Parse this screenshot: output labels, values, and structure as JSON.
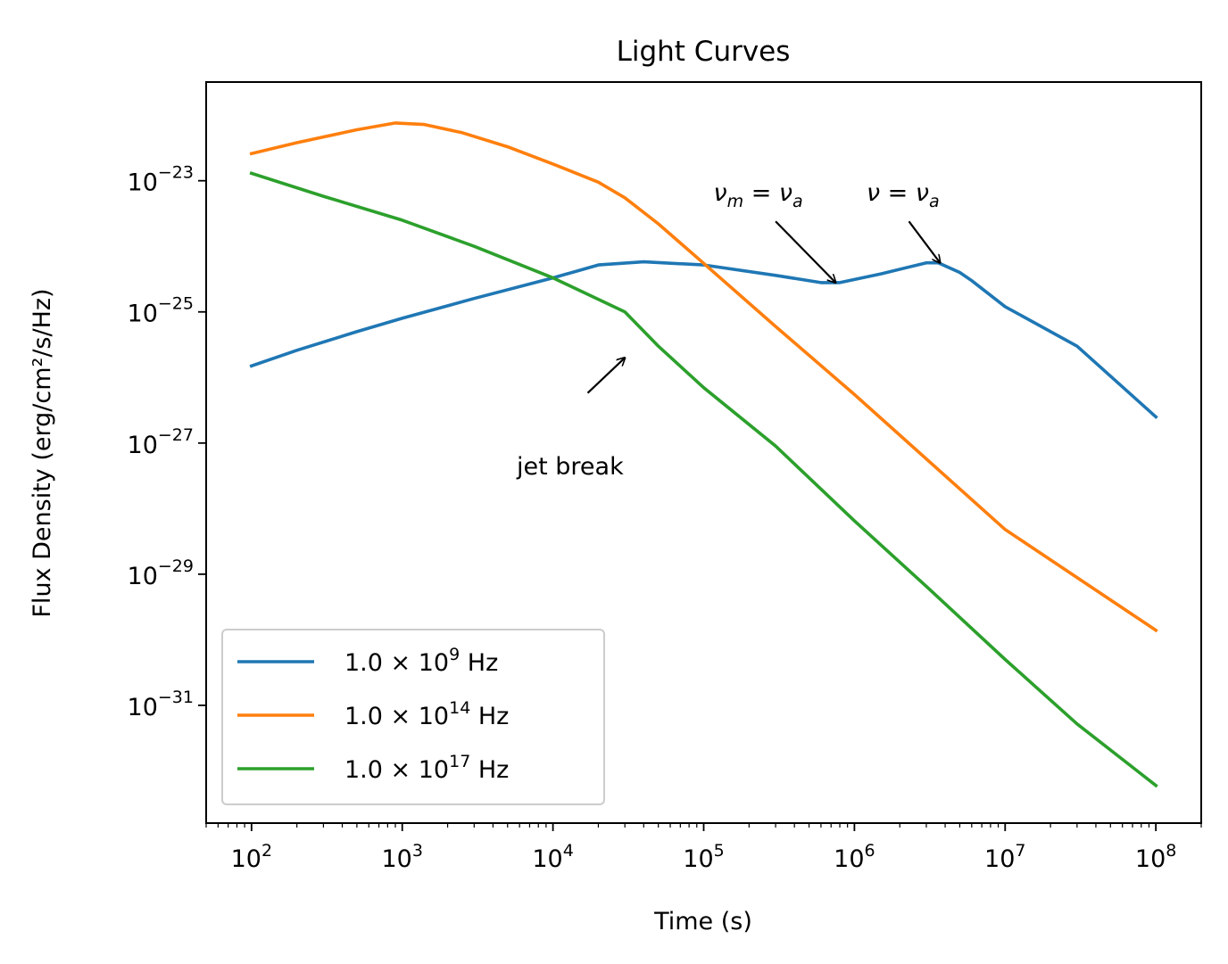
{
  "chart_data": {
    "type": "line",
    "title": "Light Curves",
    "xlabel": "Time (s)",
    "ylabel": "Flux Density (erg/cm²/s/Hz)",
    "x_scale": "log",
    "y_scale": "log",
    "xlim": [
      50,
      200000000.0
    ],
    "ylim": [
      1.6e-33,
      3.2e-22
    ],
    "x_ticks": [
      {
        "value": 100.0,
        "base": "10",
        "exp": "2"
      },
      {
        "value": 1000.0,
        "base": "10",
        "exp": "3"
      },
      {
        "value": 10000.0,
        "base": "10",
        "exp": "4"
      },
      {
        "value": 100000.0,
        "base": "10",
        "exp": "5"
      },
      {
        "value": 1000000.0,
        "base": "10",
        "exp": "6"
      },
      {
        "value": 10000000.0,
        "base": "10",
        "exp": "7"
      },
      {
        "value": 100000000.0,
        "base": "10",
        "exp": "8"
      }
    ],
    "y_ticks": [
      {
        "value": 1e-23,
        "base": "10",
        "exp": "−23"
      },
      {
        "value": 1e-25,
        "base": "10",
        "exp": "−25"
      },
      {
        "value": 1e-27,
        "base": "10",
        "exp": "−27"
      },
      {
        "value": 1e-29,
        "base": "10",
        "exp": "−29"
      },
      {
        "value": 1e-31,
        "base": "10",
        "exp": "−31"
      }
    ],
    "legend_position": "lower-left",
    "grid": false,
    "series": [
      {
        "name": "1.0 × 10^9 Hz",
        "legend": {
          "mantissa": "1.0",
          "times": " × ",
          "base": "10",
          "exp": "9",
          "unit": " Hz"
        },
        "color": "#1f77b4",
        "points": [
          [
            100.0,
            1.5e-26
          ],
          [
            200.0,
            2.6e-26
          ],
          [
            500.0,
            5e-26
          ],
          [
            1000.0,
            8e-26
          ],
          [
            3000.0,
            1.6e-25
          ],
          [
            10000.0,
            3.3e-25
          ],
          [
            20000.0,
            5.2e-25
          ],
          [
            40000.0,
            5.8e-25
          ],
          [
            100000.0,
            5.2e-25
          ],
          [
            300000.0,
            3.6e-25
          ],
          [
            600000.0,
            2.8e-25
          ],
          [
            800000.0,
            2.8e-25
          ],
          [
            1500000.0,
            3.8e-25
          ],
          [
            3000000.0,
            5.6e-25
          ],
          [
            3600000.0,
            5.6e-25
          ],
          [
            5000000.0,
            4e-25
          ],
          [
            6000000.0,
            3e-25
          ],
          [
            10000000.0,
            1.2e-25
          ],
          [
            30000000.0,
            3e-26
          ],
          [
            100000000.0,
            2.5e-27
          ]
        ]
      },
      {
        "name": "1.0 × 10^14 Hz",
        "legend": {
          "mantissa": "1.0",
          "times": " × ",
          "base": "10",
          "exp": "14",
          "unit": " Hz"
        },
        "color": "#ff7f0e",
        "points": [
          [
            100.0,
            2.6e-23
          ],
          [
            200.0,
            3.8e-23
          ],
          [
            500.0,
            6e-23
          ],
          [
            900.0,
            7.6e-23
          ],
          [
            1400.0,
            7.2e-23
          ],
          [
            2500.0,
            5.4e-23
          ],
          [
            5000.0,
            3.3e-23
          ],
          [
            10000.0,
            1.8e-23
          ],
          [
            20000.0,
            9.5e-24
          ],
          [
            30000.0,
            5.5e-24
          ],
          [
            50000.0,
            2.2e-24
          ],
          [
            100000.0,
            5.5e-25
          ],
          [
            300000.0,
            6e-26
          ],
          [
            1000000.0,
            5.5e-27
          ],
          [
            10000000.0,
            4.8e-29
          ],
          [
            100000000.0,
            1.4e-30
          ]
        ]
      },
      {
        "name": "1.0 × 10^17 Hz",
        "legend": {
          "mantissa": "1.0",
          "times": " × ",
          "base": "10",
          "exp": "17",
          "unit": " Hz"
        },
        "color": "#2ca02c",
        "points": [
          [
            100.0,
            1.3e-23
          ],
          [
            300.0,
            5.8e-24
          ],
          [
            1000.0,
            2.5e-24
          ],
          [
            3000.0,
            1e-24
          ],
          [
            10000.0,
            3.3e-25
          ],
          [
            30000.0,
            1e-25
          ],
          [
            50000.0,
            3e-26
          ],
          [
            100000.0,
            7e-27
          ],
          [
            300000.0,
            9e-28
          ],
          [
            1000000.0,
            6.5e-29
          ],
          [
            3000000.0,
            6.5e-30
          ],
          [
            10000000.0,
            5e-31
          ],
          [
            30000000.0,
            5.2e-32
          ],
          [
            100000000.0,
            6e-33
          ]
        ]
      }
    ],
    "annotations": [
      {
        "kind": "label",
        "text": "jet break",
        "x": 13000.0,
        "y": 3.3e-28,
        "arrow_from": [
          17000.0,
          5.8e-27
        ],
        "arrow_to": [
          30000.0,
          2e-26
        ]
      },
      {
        "kind": "math",
        "base": "ν",
        "sub": "m",
        "eq": " = ",
        "rhs": "ν",
        "rhs_sub": "a",
        "x": 230000.0,
        "y": 5e-24,
        "arrow_from": [
          300000.0,
          2.4e-24
        ],
        "arrow_to": [
          750000.0,
          2.8e-25
        ]
      },
      {
        "kind": "math",
        "base": "ν",
        "sub": "",
        "eq": " = ",
        "rhs": "ν",
        "rhs_sub": "a",
        "x": 2100000.0,
        "y": 5e-24,
        "arrow_from": [
          2300000.0,
          2.4e-24
        ],
        "arrow_to": [
          3700000.0,
          5.6e-25
        ]
      }
    ]
  }
}
